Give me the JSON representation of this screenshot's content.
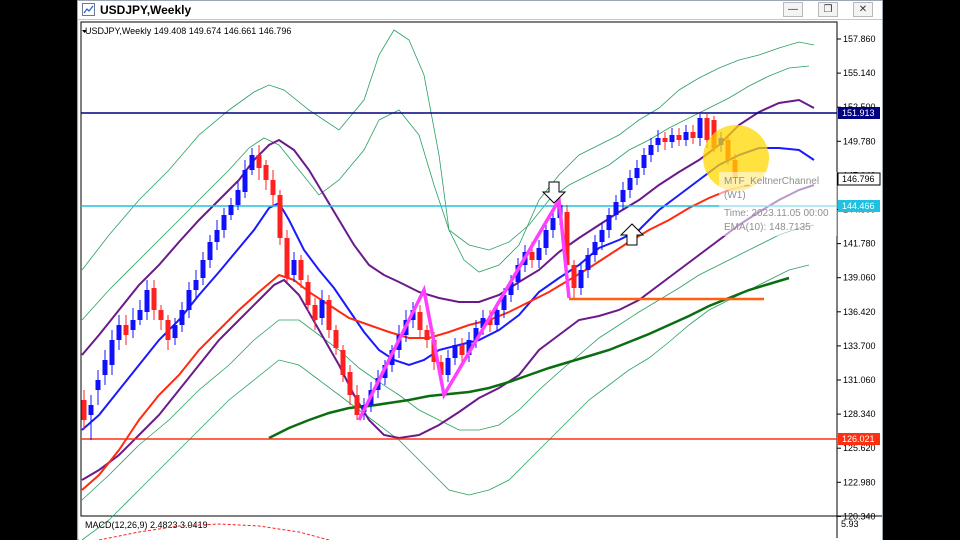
{
  "window": {
    "title": "USDJPY,Weekly",
    "minimize_icon": "minimize-icon",
    "maximize_icon": "restore-icon",
    "close_icon": "close-icon"
  },
  "chart": {
    "header": "USDJPY,Weekly  149.408 149.674 146.661 146.796",
    "macd_label": "MACD(12,26,9) 2.4823 3.0419",
    "macd_scale": "5.93",
    "price_scale": [
      "157.860",
      "155.140",
      "152.500",
      "149.780",
      "147.140",
      "144.500",
      "141.780",
      "139.060",
      "136.420",
      "133.700",
      "131.060",
      "128.340",
      "125.620",
      "122.980",
      "120.340"
    ],
    "levels": {
      "resistance": "151.913",
      "support_low": "126.021",
      "mid": "144.466",
      "last_price": "146.796"
    },
    "tooltip": {
      "line1": "MTF_KeltnerChannel",
      "line2": "(W1)",
      "line3": "Time: 2023.11.05 00:00",
      "line4": "EMA(10): 148.7135"
    },
    "colors": {
      "bull": "#1010ff",
      "bear": "#ff2020",
      "ema": "#1a1aff",
      "sma_red": "#ff2a10",
      "sma_green": "#0a6e10",
      "keltner_inner": "#6a1a8a",
      "outer_band": "#28a060",
      "zigzag": "#ff40ff",
      "resistance": "#000080",
      "mid_line": "#20c0e0",
      "support": "#ff3010",
      "highlight": "#ffd700"
    }
  }
}
